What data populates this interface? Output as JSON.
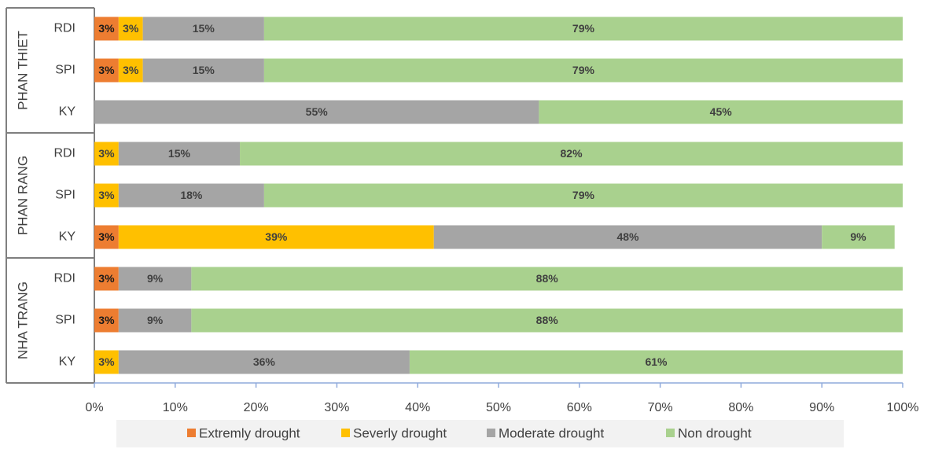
{
  "chart_data": {
    "type": "bar",
    "orientation": "horizontal",
    "stacked": true,
    "groups": [
      {
        "label": "PHAN THIET",
        "categories": [
          "RDI",
          "SPI",
          "KY"
        ]
      },
      {
        "label": "PHAN RANG",
        "categories": [
          "RDI",
          "SPI",
          "KY"
        ]
      },
      {
        "label": "NHA TRANG",
        "categories": [
          "RDI",
          "SPI",
          "KY"
        ]
      }
    ],
    "series": [
      {
        "name": "Extremly drought",
        "color": "#ED7D31",
        "values": [
          3,
          3,
          null,
          null,
          null,
          3,
          3,
          3,
          null
        ],
        "value_labels": [
          "3%",
          "3%",
          null,
          null,
          null,
          "3%",
          "3%",
          "3%",
          null
        ]
      },
      {
        "name": "Severly drought",
        "color": "#FFC000",
        "values": [
          3,
          3,
          null,
          3,
          3,
          39,
          null,
          null,
          3
        ],
        "value_labels": [
          "3%",
          "3%",
          null,
          "3%",
          "3%",
          "39%",
          null,
          null,
          "3%"
        ]
      },
      {
        "name": "Moderate drought",
        "color": "#A5A5A5",
        "values": [
          15,
          15,
          55,
          15,
          18,
          48,
          9,
          9,
          36
        ],
        "value_labels": [
          "15%",
          "15%",
          "55%",
          "15%",
          "18%",
          "48%",
          "9%",
          "9%",
          "36%"
        ]
      },
      {
        "name": "Non drought",
        "color": "#A9D18E",
        "values": [
          79,
          79,
          45,
          82,
          79,
          9,
          88,
          88,
          61
        ],
        "value_labels": [
          "79%",
          "79%",
          "45%",
          "82%",
          "79%",
          "9%",
          "88%",
          "88%",
          "61%"
        ]
      }
    ],
    "xlim": [
      0,
      100
    ],
    "xticks": [
      {
        "value": 0,
        "label": "0%"
      },
      {
        "value": 10,
        "label": "10%"
      },
      {
        "value": 20,
        "label": "20%"
      },
      {
        "value": 30,
        "label": "30%"
      },
      {
        "value": 40,
        "label": "40%"
      },
      {
        "value": 50,
        "label": "50%"
      },
      {
        "value": 60,
        "label": "60%"
      },
      {
        "value": 70,
        "label": "70%"
      },
      {
        "value": 80,
        "label": "80%"
      },
      {
        "value": 90,
        "label": "90%"
      },
      {
        "value": 100,
        "label": "100%"
      }
    ],
    "legend": "bottom"
  }
}
